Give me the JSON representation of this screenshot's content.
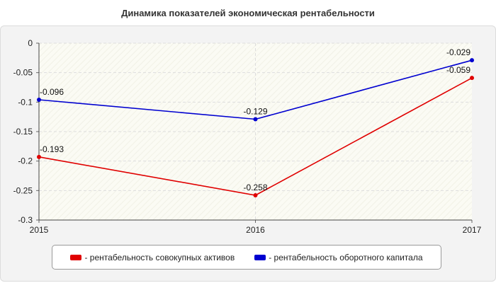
{
  "chart_data": {
    "type": "line",
    "title": "Динамика показателей экономическая рентабельности",
    "categories": [
      "2015",
      "2016",
      "2017"
    ],
    "ylim": [
      -0.3,
      0
    ],
    "yticks": [
      0,
      -0.05,
      -0.1,
      -0.15,
      -0.2,
      -0.25,
      -0.3
    ],
    "ytick_labels": [
      "0",
      "-0.05",
      "-0.1",
      "-0.15",
      "-0.2",
      "-0.25",
      "-0.3"
    ],
    "grid": true,
    "legend_position": "bottom",
    "series": [
      {
        "name": "- рентабельность совокупных активов",
        "color": "#e00000",
        "values": [
          -0.193,
          -0.258,
          -0.059
        ],
        "labels": [
          "-0.193",
          "-0.258",
          "-0.059"
        ]
      },
      {
        "name": "- рентабельность оборотного капитала",
        "color": "#0000d0",
        "values": [
          -0.096,
          -0.129,
          -0.029
        ],
        "labels": [
          "-0.096",
          "-0.129",
          "-0.029"
        ]
      }
    ]
  }
}
